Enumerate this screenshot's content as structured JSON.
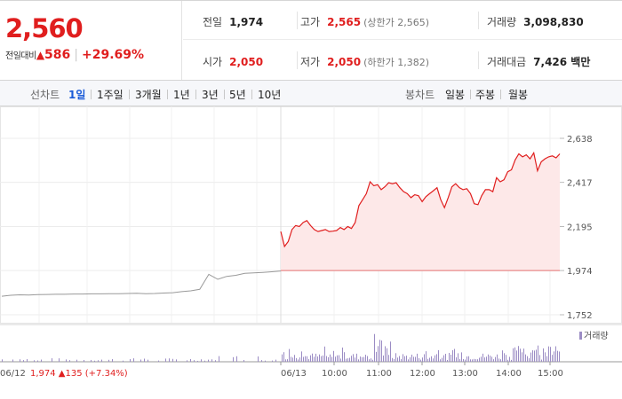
{
  "quote": {
    "price": "2,560",
    "change_label": "전일대비",
    "change_arrow": "▲",
    "change_amount": "586",
    "change_pct": "+29.69%"
  },
  "stats": {
    "prev_close_label": "전일",
    "prev_close": "1,974",
    "high_label": "고가",
    "high": "2,565",
    "upper_limit": "(상한가 2,565)",
    "volume_label": "거래량",
    "volume": "3,098,830",
    "open_label": "시가",
    "open": "2,050",
    "low_label": "저가",
    "low": "2,050",
    "lower_limit": "(하한가 1,382)",
    "amount_label": "거래대금",
    "amount": "7,426 백만"
  },
  "toolbar": {
    "line_label": "선차트",
    "line_periods": [
      "1일",
      "1주일",
      "3개월",
      "1년",
      "3년",
      "5년",
      "10년"
    ],
    "candle_label": "봉차트",
    "candle_periods": [
      "일봉",
      "주봉",
      "월봉"
    ]
  },
  "colors": {
    "up": "#e01e1e",
    "down": "#1a5bd8",
    "area": "#fde8e8",
    "prev_line": "#999999",
    "volume": "#9b8cc4"
  },
  "chart_data": {
    "type": "line",
    "y_ticks": [
      "2,638",
      "2,417",
      "2,195",
      "1,974",
      "1,752"
    ],
    "y_tick_values": [
      2638,
      2417,
      2195,
      1974,
      1752
    ],
    "ylim": [
      1752,
      2638
    ],
    "baseline": 1974,
    "x_ticks": [
      "06/13",
      "10:00",
      "11:00",
      "12:00",
      "13:00",
      "14:00",
      "15:00"
    ],
    "prev_day_label": "06/12",
    "prev_day_close": "1,974",
    "prev_day_arrow": "▲",
    "prev_day_change": "135",
    "prev_day_pct": "(+7.34%)",
    "volume_legend": "거래량",
    "prev_day_series": [
      1845,
      1850,
      1852,
      1851,
      1853,
      1854,
      1855,
      1855,
      1856,
      1856,
      1857,
      1857,
      1858,
      1858,
      1859,
      1860,
      1858,
      1859,
      1861,
      1863,
      1868,
      1872,
      1880,
      1955,
      1930,
      1945,
      1950,
      1960,
      1962,
      1965,
      1968,
      1972
    ],
    "today_series": [
      2170,
      2095,
      2120,
      2180,
      2200,
      2195,
      2215,
      2225,
      2200,
      2180,
      2170,
      2175,
      2180,
      2170,
      2172,
      2175,
      2190,
      2180,
      2195,
      2185,
      2215,
      2300,
      2330,
      2360,
      2420,
      2400,
      2405,
      2380,
      2395,
      2415,
      2410,
      2415,
      2390,
      2370,
      2360,
      2340,
      2355,
      2350,
      2320,
      2345,
      2360,
      2375,
      2390,
      2330,
      2290,
      2340,
      2395,
      2410,
      2390,
      2380,
      2385,
      2360,
      2310,
      2305,
      2350,
      2380,
      2380,
      2370,
      2440,
      2420,
      2430,
      2470,
      2480,
      2530,
      2560,
      2545,
      2555,
      2535,
      2565,
      2475,
      2520,
      2535,
      2545,
      2550,
      2540,
      2560
    ]
  }
}
